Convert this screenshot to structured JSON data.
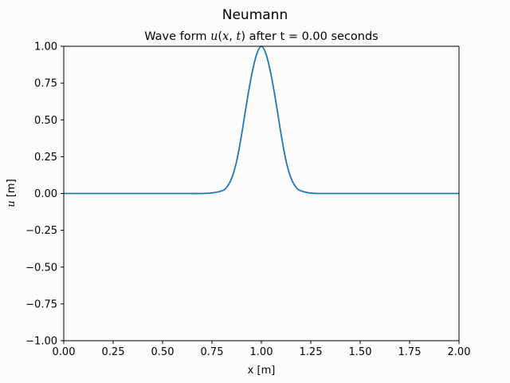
{
  "figure": {
    "suptitle": "Neumann",
    "background": "#fcfcfc"
  },
  "chart_data": {
    "type": "line",
    "title_parts": {
      "pre": "Wave form ",
      "func": "u",
      "open": "(",
      "var1": "x",
      "comma": ", ",
      "var2": "t",
      "close": ")",
      "post": " after t = 0.00 seconds"
    },
    "xlabel": "x [m]",
    "ylabel_parts": {
      "var": "u",
      "unit": " [m]"
    },
    "xlim": [
      0,
      2
    ],
    "ylim": [
      -1,
      1
    ],
    "xticks": [
      "0.00",
      "0.25",
      "0.50",
      "0.75",
      "1.00",
      "1.25",
      "1.50",
      "1.75",
      "2.00"
    ],
    "yticks": [
      "1.00",
      "0.75",
      "0.50",
      "0.25",
      "0.00",
      "−0.25",
      "−0.50",
      "−0.75",
      "−1.00"
    ],
    "grid": false,
    "series": [
      {
        "color": "#1f77b4",
        "x": [
          0.0,
          0.1,
          0.2,
          0.3,
          0.4,
          0.5,
          0.6,
          0.7,
          0.75,
          0.8,
          0.825,
          0.85,
          0.875,
          0.9,
          0.925,
          0.95,
          0.975,
          1.0,
          1.025,
          1.05,
          1.075,
          1.1,
          1.125,
          1.15,
          1.175,
          1.2,
          1.25,
          1.3,
          1.4,
          1.5,
          1.6,
          1.7,
          1.8,
          1.9,
          2.0
        ],
        "y": [
          0.0,
          0.0,
          0.0,
          0.0,
          0.0,
          0.0,
          0.0,
          0.0,
          0.004,
          0.018,
          0.043,
          0.105,
          0.22,
          0.4,
          0.61,
          0.8,
          0.94,
          1.0,
          0.94,
          0.8,
          0.61,
          0.4,
          0.22,
          0.105,
          0.043,
          0.018,
          0.003,
          0.0,
          0.0,
          0.0,
          0.0,
          0.0,
          0.0,
          0.0,
          0.0
        ]
      }
    ]
  }
}
